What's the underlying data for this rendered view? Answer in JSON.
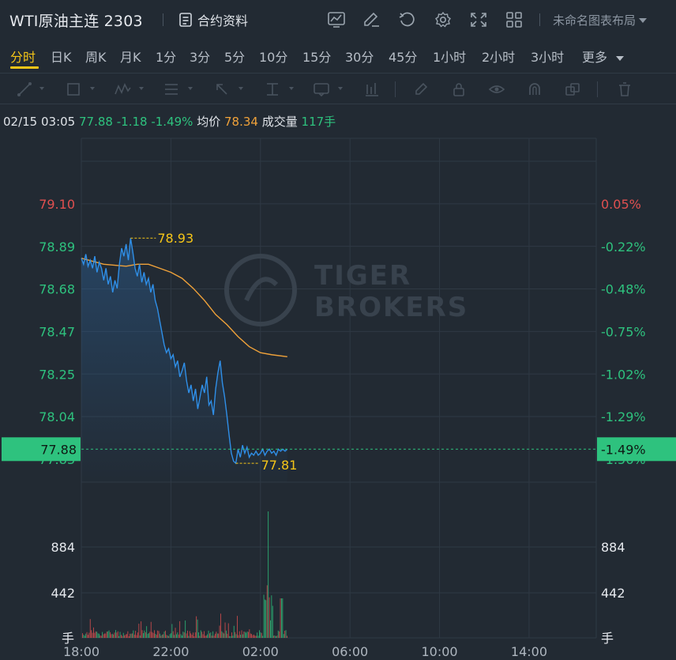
{
  "header": {
    "title": "WTI原油主连 2303",
    "contract_info": "合约资料",
    "layout": "未命名图表布局"
  },
  "periods": [
    {
      "label": "分时",
      "active": true
    },
    {
      "label": "日K"
    },
    {
      "label": "周K"
    },
    {
      "label": "月K"
    },
    {
      "label": "1分"
    },
    {
      "label": "3分"
    },
    {
      "label": "5分"
    },
    {
      "label": "10分"
    },
    {
      "label": "15分"
    },
    {
      "label": "30分"
    },
    {
      "label": "45分"
    },
    {
      "label": "1小时"
    },
    {
      "label": "2小时"
    },
    {
      "label": "3小时"
    },
    {
      "label": "更多"
    }
  ],
  "quote": {
    "datetime": "02/15 03:05",
    "price": "77.88",
    "change": "-1.18",
    "change_pct": "-1.49%",
    "avg_label": "均价",
    "avg_value": "78.34",
    "volume_label": "成交量",
    "volume_value": "117手"
  },
  "colors": {
    "up": "#e05050",
    "down": "#2ec27e",
    "price_line": "#2f8fe8",
    "avg_line": "#f0a23a",
    "annotation": "#f5c518",
    "current_tag": "#2ec27e"
  },
  "chart_data": {
    "type": "line",
    "x_ticks": [
      "18:00",
      "22:00",
      "02:00",
      "06:00",
      "10:00",
      "14:00"
    ],
    "price_ticks": [
      "79.10",
      "78.89",
      "78.68",
      "78.47",
      "78.25",
      "78.04",
      "77.83"
    ],
    "pct_ticks": [
      "0.05%",
      "-0.22%",
      "-0.48%",
      "-0.75%",
      "-1.02%",
      "-1.29%",
      "-1.56%"
    ],
    "volume_ticks": [
      "884",
      "442"
    ],
    "volume_unit": "手",
    "high_label": "78.93",
    "low_label": "77.81",
    "current_price": "77.88",
    "current_pct": "-1.49%",
    "watermark": [
      "TIGER",
      "BROKERS"
    ],
    "ylim": [
      77.83,
      79.1
    ],
    "session_hours": [
      0,
      23
    ],
    "series": [
      {
        "name": "价格",
        "x_hours": [
          0,
          0.1,
          0.2,
          0.3,
          0.4,
          0.5,
          0.6,
          0.7,
          0.8,
          0.9,
          1.0,
          1.1,
          1.2,
          1.3,
          1.4,
          1.5,
          1.6,
          1.7,
          1.8,
          1.9,
          2.0,
          2.1,
          2.2,
          2.3,
          2.4,
          2.5,
          2.6,
          2.7,
          2.8,
          2.9,
          3.0,
          3.1,
          3.2,
          3.3,
          3.4,
          3.5,
          3.6,
          3.7,
          3.8,
          3.9,
          4.0,
          4.1,
          4.2,
          4.3,
          4.4,
          4.5,
          4.6,
          4.7,
          4.8,
          4.9,
          5.0,
          5.1,
          5.2,
          5.3,
          5.4,
          5.5,
          5.6,
          5.7,
          5.8,
          5.9,
          6.0,
          6.1,
          6.2,
          6.3,
          6.4,
          6.5,
          6.6,
          6.7,
          6.8,
          6.9,
          7.0,
          7.1,
          7.2,
          7.3,
          7.4,
          7.5,
          7.6,
          7.7,
          7.8,
          7.9,
          8.0,
          8.1,
          8.2,
          8.3,
          8.4,
          8.5,
          8.6,
          8.7,
          8.8,
          8.9,
          9.0,
          9.1,
          9.2
        ],
        "values": [
          78.83,
          78.8,
          78.85,
          78.79,
          78.82,
          78.78,
          78.84,
          78.76,
          78.81,
          78.78,
          78.72,
          78.78,
          78.7,
          78.74,
          78.66,
          78.72,
          78.68,
          78.8,
          78.88,
          78.84,
          78.9,
          78.82,
          78.93,
          78.86,
          78.78,
          78.74,
          78.8,
          78.71,
          78.76,
          78.7,
          78.73,
          78.66,
          78.7,
          78.62,
          78.58,
          78.52,
          78.46,
          78.4,
          78.36,
          78.38,
          78.33,
          78.35,
          78.29,
          78.32,
          78.24,
          78.27,
          78.31,
          78.22,
          78.16,
          78.2,
          78.12,
          78.18,
          78.08,
          78.14,
          78.2,
          78.16,
          78.24,
          78.1,
          78.12,
          78.05,
          78.18,
          78.26,
          78.32,
          78.21,
          78.14,
          78.05,
          77.95,
          77.86,
          77.82,
          77.81,
          77.88,
          77.84,
          77.9,
          77.86,
          77.89,
          77.84,
          77.86,
          77.85,
          77.87,
          77.85,
          77.86,
          77.88,
          77.85,
          77.87,
          77.88,
          77.86,
          77.87,
          77.85,
          77.88,
          77.87,
          77.88,
          77.87,
          77.88
        ]
      },
      {
        "name": "均价",
        "x_hours": [
          0,
          1.0,
          2.0,
          2.5,
          3.0,
          3.5,
          4.0,
          4.5,
          5.0,
          5.5,
          6.0,
          6.5,
          7.0,
          7.5,
          8.0,
          8.5,
          9.2
        ],
        "values": [
          78.83,
          78.8,
          78.79,
          78.8,
          78.8,
          78.78,
          78.76,
          78.73,
          78.68,
          78.62,
          78.55,
          78.5,
          78.44,
          78.39,
          78.36,
          78.35,
          78.34
        ]
      }
    ]
  }
}
